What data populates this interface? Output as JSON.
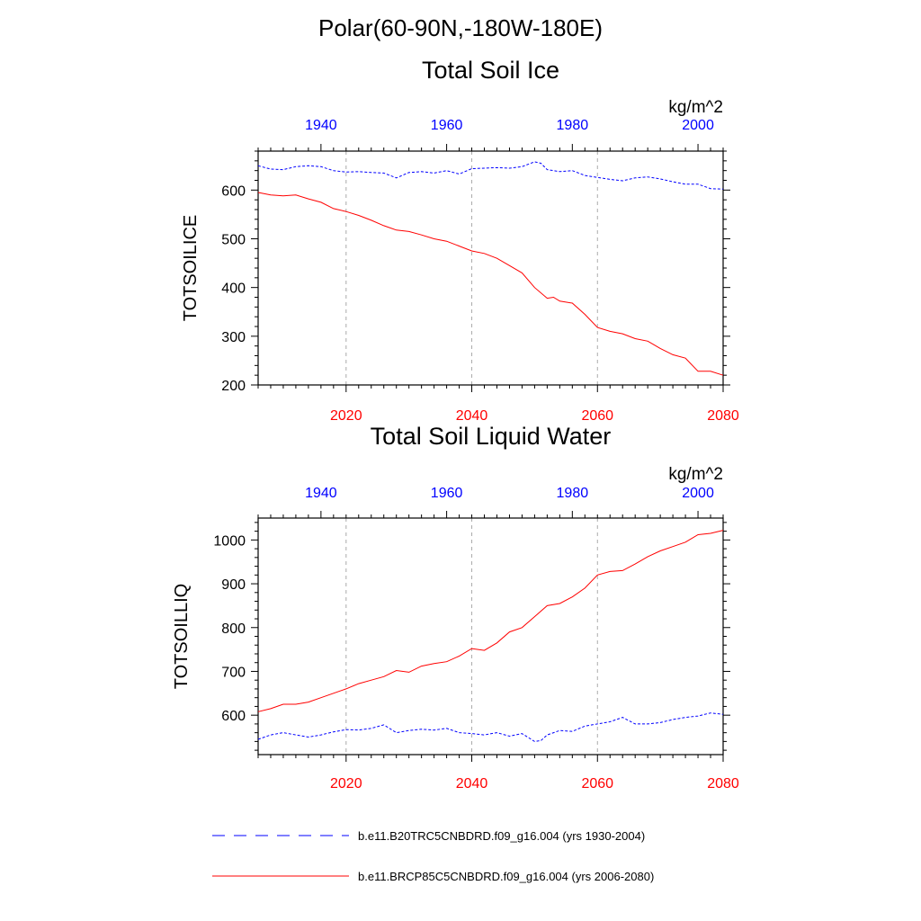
{
  "page_title": "Polar(60-90N,-180W-180E)",
  "colors": {
    "historical": "#0000ff",
    "future": "#ff0000",
    "axis": "#000000",
    "grid": "#aaaaaa"
  },
  "legend": {
    "items": [
      {
        "label": "b.e11.B20TRC5CNBDRD.f09_g16.004 (yrs 1930-2004)",
        "style": "dashed",
        "color": "#0000ff"
      },
      {
        "label": "b.e11.BRCP85C5CNBDRD.f09_g16.004 (yrs 2006-2080)",
        "style": "solid",
        "color": "#ff0000"
      }
    ]
  },
  "chart_data": [
    {
      "type": "line",
      "title": "Total Soil Ice",
      "ylabel": "TOTSOILICE",
      "units": "kg/m^2",
      "ylim": [
        200,
        680
      ],
      "yticks": [
        200,
        300,
        400,
        500,
        600
      ],
      "bottom_axis": {
        "range": [
          2006,
          2080
        ],
        "ticks": [
          2020,
          2040,
          2060,
          2080
        ],
        "color": "#ff0000"
      },
      "top_axis": {
        "range": [
          1930,
          2004
        ],
        "ticks": [
          1940,
          1960,
          1980,
          2000
        ],
        "color": "#0000ff"
      },
      "series": [
        {
          "name": "b.e11.B20TRC5CNBDRD.f09_g16.004 (yrs 1930-2004)",
          "axis": "top",
          "style": "dashed",
          "color": "#0000ff",
          "x": [
            1930,
            1932,
            1934,
            1936,
            1938,
            1940,
            1942,
            1944,
            1946,
            1948,
            1950,
            1952,
            1954,
            1956,
            1958,
            1960,
            1962,
            1964,
            1966,
            1968,
            1970,
            1972,
            1974,
            1975,
            1976,
            1978,
            1980,
            1982,
            1984,
            1986,
            1988,
            1990,
            1992,
            1994,
            1996,
            1998,
            2000,
            2002,
            2004
          ],
          "values": [
            650,
            643,
            642,
            648,
            650,
            648,
            640,
            637,
            638,
            636,
            635,
            625,
            636,
            638,
            635,
            640,
            633,
            644,
            645,
            646,
            645,
            648,
            658,
            655,
            642,
            638,
            640,
            630,
            626,
            622,
            619,
            625,
            627,
            623,
            617,
            612,
            612,
            603,
            602
          ]
        },
        {
          "name": "b.e11.BRCP85C5CNBDRD.f09_g16.004 (yrs 2006-2080)",
          "axis": "bottom",
          "style": "solid",
          "color": "#ff0000",
          "x": [
            2006,
            2008,
            2010,
            2012,
            2014,
            2016,
            2018,
            2020,
            2022,
            2024,
            2026,
            2028,
            2030,
            2032,
            2034,
            2036,
            2038,
            2040,
            2042,
            2044,
            2046,
            2048,
            2050,
            2052,
            2053,
            2054,
            2056,
            2058,
            2060,
            2062,
            2064,
            2066,
            2068,
            2070,
            2072,
            2074,
            2076,
            2078,
            2080
          ],
          "values": [
            595,
            590,
            588,
            590,
            582,
            575,
            562,
            556,
            548,
            538,
            527,
            518,
            515,
            508,
            500,
            495,
            485,
            475,
            470,
            460,
            445,
            430,
            400,
            378,
            380,
            372,
            368,
            345,
            318,
            310,
            305,
            295,
            290,
            275,
            262,
            255,
            228,
            228,
            220
          ]
        }
      ]
    },
    {
      "type": "line",
      "title": "Total Soil Liquid Water",
      "ylabel": "TOTSOILLIQ",
      "units": "kg/m^2",
      "ylim": [
        510,
        1050
      ],
      "yticks": [
        600,
        700,
        800,
        900,
        1000
      ],
      "bottom_axis": {
        "range": [
          2006,
          2080
        ],
        "ticks": [
          2020,
          2040,
          2060,
          2080
        ],
        "color": "#ff0000"
      },
      "top_axis": {
        "range": [
          1930,
          2004
        ],
        "ticks": [
          1940,
          1960,
          1980,
          2000
        ],
        "color": "#0000ff"
      },
      "series": [
        {
          "name": "b.e11.B20TRC5CNBDRD.f09_g16.004 (yrs 1930-2004)",
          "axis": "top",
          "style": "dashed",
          "color": "#0000ff",
          "x": [
            1930,
            1932,
            1934,
            1936,
            1938,
            1940,
            1942,
            1944,
            1946,
            1948,
            1950,
            1952,
            1954,
            1956,
            1958,
            1960,
            1962,
            1964,
            1966,
            1968,
            1970,
            1972,
            1974,
            1975,
            1976,
            1978,
            1980,
            1982,
            1984,
            1986,
            1988,
            1990,
            1992,
            1994,
            1996,
            1998,
            2000,
            2002,
            2004
          ],
          "values": [
            545,
            555,
            560,
            555,
            550,
            555,
            562,
            567,
            566,
            570,
            578,
            560,
            565,
            568,
            566,
            570,
            560,
            558,
            555,
            560,
            552,
            558,
            540,
            542,
            555,
            565,
            563,
            575,
            580,
            585,
            595,
            580,
            580,
            583,
            590,
            595,
            598,
            605,
            602
          ]
        },
        {
          "name": "b.e11.BRCP85C5CNBDRD.f09_g16.004 (yrs 2006-2080)",
          "axis": "bottom",
          "style": "solid",
          "color": "#ff0000",
          "x": [
            2006,
            2008,
            2010,
            2012,
            2014,
            2016,
            2018,
            2020,
            2022,
            2024,
            2026,
            2028,
            2030,
            2032,
            2034,
            2036,
            2038,
            2040,
            2042,
            2044,
            2046,
            2048,
            2050,
            2052,
            2054,
            2056,
            2058,
            2060,
            2062,
            2064,
            2066,
            2068,
            2070,
            2072,
            2074,
            2076,
            2078,
            2080
          ],
          "values": [
            608,
            615,
            625,
            625,
            630,
            640,
            650,
            660,
            672,
            680,
            688,
            702,
            698,
            712,
            718,
            722,
            735,
            752,
            748,
            765,
            790,
            800,
            825,
            850,
            855,
            870,
            890,
            920,
            928,
            930,
            945,
            962,
            975,
            985,
            995,
            1012,
            1015,
            1022
          ]
        }
      ]
    }
  ]
}
